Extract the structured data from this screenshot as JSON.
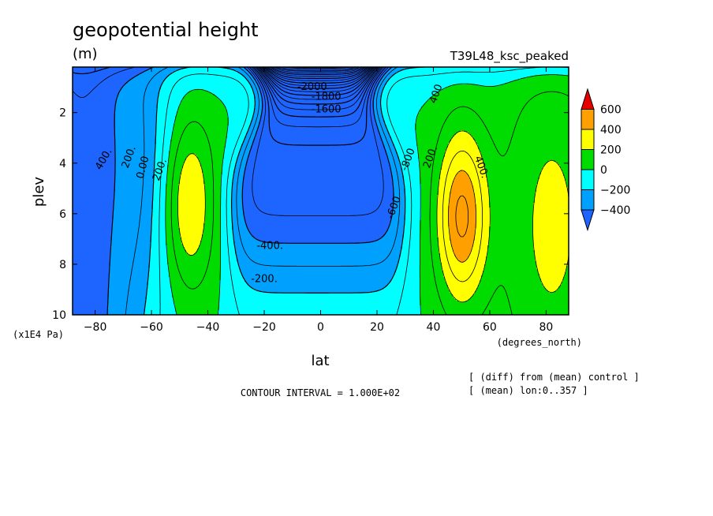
{
  "chart_data": {
    "type": "contour",
    "title": "geopotential height",
    "units": "(m)",
    "run_label": "T39L48_ksc_peaked",
    "xlabel": "lat",
    "x_units": "(degrees_north)",
    "ylabel": "plev",
    "y_units": "(x1E4 Pa)",
    "xlim": [
      -88,
      88
    ],
    "ylim": [
      0.2,
      10
    ],
    "y_inverted": true,
    "x_ticks": [
      "-80",
      "-60",
      "-40",
      "-20",
      "0",
      "20",
      "40",
      "60",
      "80"
    ],
    "x_tick_values": [
      -80,
      -60,
      -40,
      -20,
      0,
      20,
      40,
      60,
      80
    ],
    "y_ticks": [
      "2",
      "4",
      "6",
      "8",
      "10"
    ],
    "y_tick_values": [
      2,
      4,
      6,
      8,
      10
    ],
    "contour_interval_text": "CONTOUR INTERVAL = 1.000E+02",
    "notes": [
      "[ (diff) from (mean) control ]",
      "[ (mean) lon:0..357 ]"
    ],
    "colorbar": {
      "labels": [
        "600",
        "400",
        "200",
        "0",
        "−200",
        "−400"
      ],
      "colors": [
        "#e60000",
        "#ff9f00",
        "#ffff00",
        "#00dc00",
        "#00ffff",
        "#00a0ff",
        "#1e64ff"
      ]
    },
    "levels": [
      -400,
      -200,
      0,
      200,
      400,
      600
    ],
    "band_colors": [
      "#1e64ff",
      "#00a0ff",
      "#00ffff",
      "#00dc00",
      "#ffff00",
      "#ff9f00",
      "#e60000"
    ],
    "field_model": {
      "comment": "approximate values of the plotted field at sample points (lat in degrees, p in 1E4 Pa)",
      "samples": [
        {
          "lat": -47,
          "p": 5.5,
          "value": 320
        },
        {
          "lat": 50,
          "p": 6,
          "value": 480
        },
        {
          "lat": 0,
          "p": 9.8,
          "value": -100
        },
        {
          "lat": 0,
          "p": 1,
          "value": -2000
        },
        {
          "lat": -80,
          "p": 5,
          "value": -500
        },
        {
          "lat": 80,
          "p": 6,
          "value": 150
        }
      ]
    },
    "contour_labels": [
      "400.",
      "200.",
      "0.00",
      "200.",
      "-400.",
      "-200.",
      "-2000",
      "-1800",
      "-1600",
      "-600",
      "-800",
      "400",
      "200.",
      "400."
    ]
  }
}
